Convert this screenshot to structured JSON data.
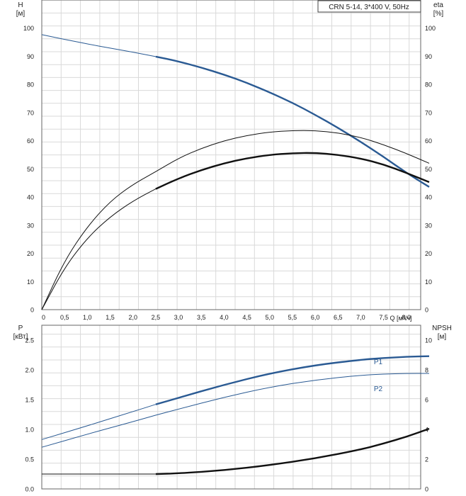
{
  "chart_data": [
    {
      "type": "line",
      "title": "CRN 5-14, 3*400 V, 50Hz",
      "left_axis": {
        "label_line1": "H",
        "label_line2": "[м]",
        "ylim": [
          0,
          110
        ],
        "ticks": [
          "0",
          "10",
          "20",
          "30",
          "40",
          "50",
          "60",
          "70",
          "80",
          "90",
          "100"
        ]
      },
      "right_axis": {
        "label_line1": "eta",
        "label_line2": "[%]",
        "ylim": [
          0,
          110
        ],
        "ticks": [
          "0",
          "10",
          "20",
          "30",
          "40",
          "50",
          "60",
          "70",
          "80",
          "90",
          "100"
        ]
      },
      "x_axis": {
        "label": "Q [м³/ч]",
        "xlim": [
          0,
          8.5
        ],
        "ticks": [
          "0",
          "0,5",
          "1,0",
          "1,5",
          "2,0",
          "2,5",
          "3,0",
          "3,5",
          "4,0",
          "4,5",
          "5,0",
          "5,5",
          "6,0",
          "6,5",
          "7,0",
          "7,5",
          "8,0"
        ],
        "tick_values": [
          0,
          0.5,
          1.0,
          1.5,
          2.0,
          2.5,
          3.0,
          3.5,
          4.0,
          4.5,
          5.0,
          5.5,
          6.0,
          6.5,
          7.0,
          7.5,
          8.0
        ]
      },
      "grid": true,
      "series": [
        {
          "axis": "left",
          "color": "#2a5a93",
          "points_x": [
            0,
            0.5,
            1.0,
            1.5,
            2.0,
            2.5,
            3.0,
            3.5,
            4.0,
            4.5,
            5.0,
            5.5,
            6.0,
            6.5,
            7.0,
            7.5,
            8.0,
            8.5
          ],
          "points_y": [
            97.7,
            96.0,
            94.4,
            92.9,
            91.5,
            89.9,
            88.2,
            86.0,
            83.5,
            80.6,
            77.2,
            73.5,
            69.2,
            64.6,
            59.6,
            54.3,
            48.6,
            43.6
          ],
          "bold_from_x": 2.5
        },
        {
          "axis": "right",
          "color": "#111111",
          "points_x": [
            0,
            0.5,
            1.0,
            1.5,
            2.0,
            2.5,
            3.0,
            3.5,
            4.0,
            4.5,
            5.0,
            5.5,
            6.0,
            6.5,
            7.0,
            7.5,
            8.0,
            8.5
          ],
          "points_y": [
            0,
            17.5,
            29.5,
            38.5,
            44.5,
            49.0,
            53.8,
            57.3,
            60.0,
            61.9,
            63.1,
            63.6,
            63.6,
            62.8,
            61.2,
            58.6,
            55.5,
            52.0
          ],
          "bold_from_x": 99
        },
        {
          "axis": "right",
          "color": "#111111",
          "points_x": [
            0,
            0.5,
            1.0,
            1.5,
            2.0,
            2.5,
            3.0,
            3.5,
            4.0,
            4.5,
            5.0,
            5.5,
            6.0,
            6.5,
            7.0,
            7.5,
            8.0,
            8.5
          ],
          "points_y": [
            0,
            15.0,
            25.5,
            33.0,
            38.6,
            42.9,
            46.6,
            49.6,
            52.0,
            53.8,
            55.0,
            55.6,
            55.7,
            55.0,
            53.7,
            51.6,
            48.6,
            45.3
          ],
          "bold_from_x": 2.5
        }
      ]
    },
    {
      "type": "line",
      "left_axis": {
        "label_line1": "P",
        "label_line2": "[кВт]",
        "ylim": [
          0,
          2.75
        ],
        "ticks": [
          "0.0",
          "0.5",
          "1.0",
          "1.5",
          "2.0",
          "2.5"
        ]
      },
      "right_axis": {
        "label_line1": "NPSH",
        "label_line2": "[м]",
        "ylim": [
          0,
          11
        ],
        "ticks": [
          "0",
          "2",
          "4",
          "6",
          "8",
          "10"
        ]
      },
      "x_axis": {
        "xlim": [
          0,
          8.5
        ]
      },
      "grid": true,
      "series": [
        {
          "name": "P1",
          "axis": "left",
          "color": "#2a5a93",
          "points_x": [
            0,
            1.0,
            2.0,
            2.5,
            3.0,
            4.0,
            5.0,
            6.0,
            7.0,
            7.5,
            8.0,
            8.5
          ],
          "points_y": [
            0.83,
            1.06,
            1.3,
            1.42,
            1.53,
            1.75,
            1.94,
            2.08,
            2.17,
            2.2,
            2.22,
            2.23
          ],
          "bold_from_x": 2.5
        },
        {
          "name": "P2",
          "axis": "left",
          "color": "#2a5a93",
          "points_x": [
            0,
            1.0,
            2.0,
            2.5,
            3.0,
            4.0,
            5.0,
            6.0,
            7.0,
            7.5,
            8.0,
            8.5
          ],
          "points_y": [
            0.7,
            0.92,
            1.13,
            1.24,
            1.34,
            1.54,
            1.71,
            1.83,
            1.91,
            1.93,
            1.94,
            1.94
          ],
          "bold_from_x": 99
        },
        {
          "axis": "right",
          "color": "#111111",
          "points_x": [
            0,
            1.0,
            2.0,
            2.5,
            3.0,
            4.0,
            5.0,
            6.0,
            7.0,
            7.5,
            8.0,
            8.5
          ],
          "points_y": [
            1.0,
            1.0,
            1.0,
            1.0,
            1.05,
            1.25,
            1.6,
            2.05,
            2.65,
            3.05,
            3.5,
            4.05
          ],
          "bold_from_x": 2.5
        }
      ]
    }
  ]
}
